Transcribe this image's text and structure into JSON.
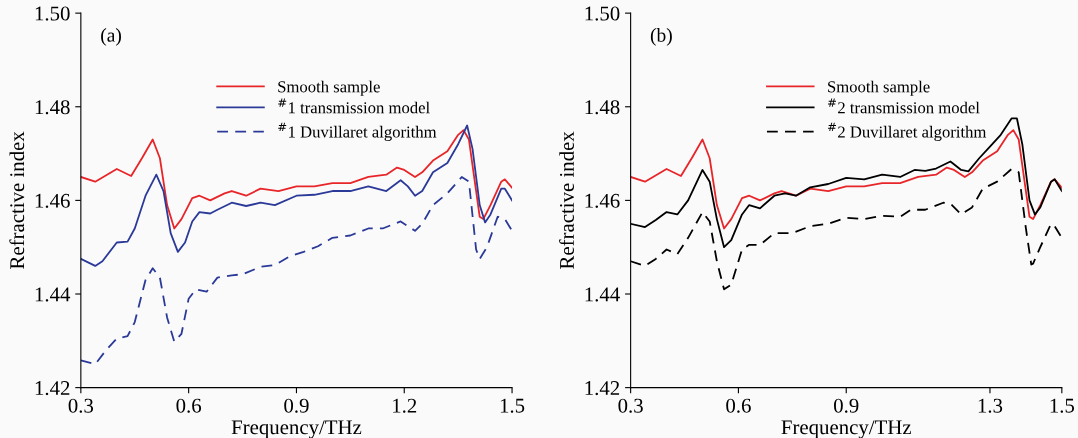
{
  "chart_data": [
    {
      "type": "line",
      "xlabel": "Frequency/THz",
      "ylabel": "Refractive index",
      "annotations": [
        "(a)"
      ],
      "xlim": [
        0.3,
        1.5
      ],
      "xticks": [
        0.3,
        0.6,
        0.9,
        1.2,
        1.5
      ],
      "ylim": [
        1.42,
        1.5
      ],
      "yticks": [
        1.42,
        1.44,
        1.46,
        1.48,
        {
          "value": 1.5,
          "label": "1.50"
        }
      ],
      "grid": false,
      "legend": "top right",
      "marker": "none",
      "series": [
        {
          "name": "Smooth sample",
          "color": "#e8262a",
          "line_style": "solid",
          "x": [
            0.3,
            0.34,
            0.4,
            0.44,
            0.47,
            0.5,
            0.52,
            0.54,
            0.56,
            0.58,
            0.61,
            0.63,
            0.66,
            0.7,
            0.72,
            0.76,
            0.8,
            0.85,
            0.9,
            0.95,
            1.0,
            1.05,
            1.1,
            1.15,
            1.18,
            1.2,
            1.23,
            1.25,
            1.28,
            1.32,
            1.35,
            1.365,
            1.38,
            1.4,
            1.41,
            1.42,
            1.44,
            1.47,
            1.48,
            1.5
          ],
          "values": [
            1.465,
            1.464,
            1.4667,
            1.4652,
            1.469,
            1.473,
            1.469,
            1.459,
            1.454,
            1.456,
            1.4605,
            1.461,
            1.46,
            1.4615,
            1.462,
            1.461,
            1.4625,
            1.462,
            1.463,
            1.463,
            1.4637,
            1.4637,
            1.465,
            1.4655,
            1.467,
            1.4665,
            1.465,
            1.466,
            1.4685,
            1.4705,
            1.474,
            1.475,
            1.473,
            1.462,
            1.4565,
            1.456,
            1.459,
            1.464,
            1.4645,
            1.4627
          ]
        },
        {
          "name": "$^{#}$1 transmission model",
          "color": "#2b3a98",
          "line_style": "solid",
          "x": [
            0.3,
            0.34,
            0.36,
            0.4,
            0.43,
            0.45,
            0.48,
            0.51,
            0.53,
            0.55,
            0.57,
            0.59,
            0.61,
            0.63,
            0.66,
            0.68,
            0.72,
            0.76,
            0.8,
            0.84,
            0.9,
            0.95,
            1.0,
            1.05,
            1.1,
            1.15,
            1.19,
            1.21,
            1.23,
            1.25,
            1.28,
            1.32,
            1.35,
            1.375,
            1.39,
            1.41,
            1.425,
            1.44,
            1.47,
            1.48,
            1.5
          ],
          "values": [
            1.4475,
            1.446,
            1.447,
            1.451,
            1.4512,
            1.454,
            1.461,
            1.4655,
            1.462,
            1.453,
            1.449,
            1.451,
            1.4555,
            1.4575,
            1.4572,
            1.458,
            1.4595,
            1.4588,
            1.4595,
            1.459,
            1.461,
            1.4612,
            1.462,
            1.462,
            1.463,
            1.462,
            1.4643,
            1.463,
            1.461,
            1.462,
            1.466,
            1.468,
            1.472,
            1.476,
            1.471,
            1.459,
            1.4553,
            1.457,
            1.4625,
            1.4625,
            1.46
          ]
        },
        {
          "name": "$^{#}$1 Duvillaret algorithm",
          "color": "#2b3a98",
          "line_style": "dashed",
          "x": [
            0.3,
            0.34,
            0.37,
            0.4,
            0.43,
            0.45,
            0.48,
            0.5,
            0.52,
            0.54,
            0.56,
            0.58,
            0.6,
            0.62,
            0.65,
            0.68,
            0.72,
            0.75,
            0.8,
            0.84,
            0.88,
            0.92,
            0.96,
            1.0,
            1.05,
            1.1,
            1.14,
            1.19,
            1.21,
            1.23,
            1.25,
            1.28,
            1.32,
            1.36,
            1.38,
            1.4,
            1.41,
            1.43,
            1.46,
            1.48,
            1.5
          ],
          "values": [
            1.4258,
            1.425,
            1.428,
            1.4305,
            1.431,
            1.434,
            1.443,
            1.4455,
            1.4435,
            1.435,
            1.4298,
            1.4315,
            1.439,
            1.441,
            1.4405,
            1.4435,
            1.444,
            1.4442,
            1.4458,
            1.4462,
            1.448,
            1.449,
            1.4502,
            1.452,
            1.4525,
            1.454,
            1.454,
            1.4555,
            1.4545,
            1.4535,
            1.455,
            1.459,
            1.4615,
            1.465,
            1.464,
            1.4495,
            1.4475,
            1.45,
            1.4565,
            1.456,
            1.4535
          ]
        }
      ]
    },
    {
      "type": "line",
      "xlabel": "Frequency/THz",
      "ylabel": "Refractive index",
      "annotations": [
        "(b)"
      ],
      "xlim": [
        0.3,
        1.5
      ],
      "xticks": [
        0.3,
        0.6,
        0.9,
        1.3,
        1.5
      ],
      "ylim": [
        1.42,
        1.5
      ],
      "yticks": [
        1.42,
        1.44,
        1.46,
        1.48,
        {
          "value": 1.5,
          "label": "1.50"
        }
      ],
      "grid": false,
      "legend": "top right",
      "marker": "none",
      "series": [
        {
          "name": "Smooth sample",
          "color": "#e8262a",
          "line_style": "solid",
          "x": [
            0.3,
            0.34,
            0.4,
            0.44,
            0.47,
            0.5,
            0.52,
            0.54,
            0.56,
            0.58,
            0.61,
            0.63,
            0.66,
            0.7,
            0.72,
            0.76,
            0.8,
            0.85,
            0.9,
            0.95,
            1.0,
            1.05,
            1.1,
            1.15,
            1.18,
            1.2,
            1.23,
            1.25,
            1.28,
            1.32,
            1.35,
            1.365,
            1.38,
            1.4,
            1.41,
            1.42,
            1.44,
            1.47,
            1.48,
            1.5
          ],
          "values": [
            1.465,
            1.464,
            1.4667,
            1.4652,
            1.469,
            1.473,
            1.469,
            1.459,
            1.454,
            1.456,
            1.4605,
            1.461,
            1.46,
            1.4615,
            1.462,
            1.461,
            1.4625,
            1.462,
            1.463,
            1.463,
            1.4637,
            1.4637,
            1.465,
            1.4655,
            1.467,
            1.4665,
            1.465,
            1.466,
            1.4685,
            1.4705,
            1.474,
            1.475,
            1.473,
            1.462,
            1.4565,
            1.456,
            1.459,
            1.464,
            1.4645,
            1.4627
          ]
        },
        {
          "name": "$^{#}$2 transmission model",
          "color": "#000000",
          "line_style": "solid",
          "x": [
            0.3,
            0.34,
            0.37,
            0.4,
            0.43,
            0.46,
            0.5,
            0.52,
            0.54,
            0.56,
            0.58,
            0.61,
            0.63,
            0.66,
            0.7,
            0.73,
            0.76,
            0.8,
            0.85,
            0.9,
            0.95,
            1.0,
            1.05,
            1.09,
            1.12,
            1.15,
            1.19,
            1.22,
            1.24,
            1.27,
            1.3,
            1.33,
            1.36,
            1.375,
            1.39,
            1.41,
            1.425,
            1.44,
            1.47,
            1.48,
            1.5
          ],
          "values": [
            1.455,
            1.4543,
            1.4558,
            1.4575,
            1.457,
            1.46,
            1.4665,
            1.464,
            1.456,
            1.45,
            1.4515,
            1.457,
            1.459,
            1.4583,
            1.461,
            1.4615,
            1.461,
            1.4628,
            1.4635,
            1.4648,
            1.4645,
            1.4655,
            1.465,
            1.4665,
            1.4663,
            1.4668,
            1.4683,
            1.4665,
            1.4662,
            1.469,
            1.4715,
            1.474,
            1.4775,
            1.4775,
            1.472,
            1.46,
            1.457,
            1.4585,
            1.464,
            1.4645,
            1.462
          ]
        },
        {
          "name": "$^{#}$2 Duvillaret algorithm",
          "color": "#000000",
          "line_style": "dashed",
          "x": [
            0.3,
            0.34,
            0.37,
            0.4,
            0.43,
            0.46,
            0.5,
            0.52,
            0.54,
            0.56,
            0.58,
            0.61,
            0.63,
            0.66,
            0.7,
            0.75,
            0.8,
            0.85,
            0.9,
            0.95,
            1.0,
            1.05,
            1.08,
            1.12,
            1.17,
            1.19,
            1.22,
            1.25,
            1.28,
            1.32,
            1.36,
            1.38,
            1.4,
            1.415,
            1.42,
            1.44,
            1.47,
            1.48,
            1.5
          ],
          "values": [
            1.447,
            1.446,
            1.4475,
            1.4495,
            1.4485,
            1.452,
            1.4575,
            1.4555,
            1.447,
            1.441,
            1.442,
            1.4495,
            1.4505,
            1.4505,
            1.453,
            1.453,
            1.4545,
            1.455,
            1.4563,
            1.456,
            1.4567,
            1.4565,
            1.458,
            1.458,
            1.4595,
            1.4593,
            1.457,
            1.4585,
            1.4625,
            1.464,
            1.4667,
            1.466,
            1.454,
            1.4463,
            1.4465,
            1.45,
            1.455,
            1.4545,
            1.452
          ]
        }
      ]
    }
  ]
}
